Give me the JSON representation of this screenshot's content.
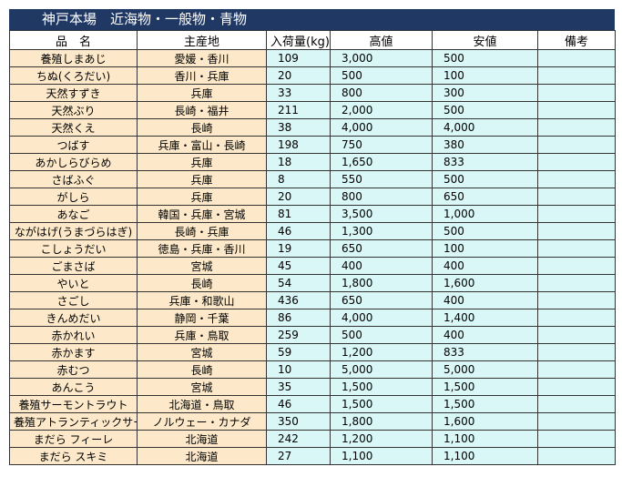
{
  "header": {
    "title": "神戸本場　近海物・一般物・青物"
  },
  "table": {
    "columns": [
      "品　名",
      "主産地",
      "入荷量(kg)",
      "高値",
      "安値",
      "備考"
    ],
    "rows": [
      {
        "name": "養殖しまあじ",
        "origin": "愛媛・香川",
        "qty": "109",
        "high": "3,000",
        "low": "500"
      },
      {
        "name": "ちぬ(くろだい)",
        "origin": "香川・兵庫",
        "qty": "20",
        "high": "500",
        "low": "100"
      },
      {
        "name": "天然すずき",
        "origin": "兵庫",
        "qty": "33",
        "high": "800",
        "low": "300"
      },
      {
        "name": "天然ぶり",
        "origin": "長崎・福井",
        "qty": "211",
        "high": "2,000",
        "low": "500"
      },
      {
        "name": "天然くえ",
        "origin": "長崎",
        "qty": "38",
        "high": "4,000",
        "low": "4,000"
      },
      {
        "name": "つばす",
        "origin": "兵庫・富山・長崎",
        "qty": "198",
        "high": "750",
        "low": "380"
      },
      {
        "name": "あかしらびらめ",
        "origin": "兵庫",
        "qty": "18",
        "high": "1,650",
        "low": "833"
      },
      {
        "name": "さばふぐ",
        "origin": "兵庫",
        "qty": "8",
        "high": "550",
        "low": "500"
      },
      {
        "name": "がしら",
        "origin": "兵庫",
        "qty": "20",
        "high": "800",
        "low": "650"
      },
      {
        "name": "あなご",
        "origin": "韓国・兵庫・宮城",
        "qty": "81",
        "high": "3,500",
        "low": "1,000"
      },
      {
        "name": "ながはげ(うまづらはぎ)",
        "origin": "長崎・兵庫",
        "qty": "46",
        "high": "1,300",
        "low": "500"
      },
      {
        "name": "こしょうだい",
        "origin": "徳島・兵庫・香川",
        "qty": "19",
        "high": "650",
        "low": "100"
      },
      {
        "name": "ごまさば",
        "origin": "宮城",
        "qty": "45",
        "high": "400",
        "low": "400"
      },
      {
        "name": "やいと",
        "origin": "長崎",
        "qty": "54",
        "high": "1,800",
        "low": "1,600"
      },
      {
        "name": "さごし",
        "origin": "兵庫・和歌山",
        "qty": "436",
        "high": "650",
        "low": "400"
      },
      {
        "name": "きんめだい",
        "origin": "静岡・千葉",
        "qty": "86",
        "high": "4,000",
        "low": "1,400"
      },
      {
        "name": "赤かれい",
        "origin": "兵庫・鳥取",
        "qty": "259",
        "high": "500",
        "low": "400"
      },
      {
        "name": "赤かます",
        "origin": "宮城",
        "qty": "59",
        "high": "1,200",
        "low": "833"
      },
      {
        "name": "赤むつ",
        "origin": "長崎",
        "qty": "10",
        "high": "5,000",
        "low": "5,000"
      },
      {
        "name": "あんこう",
        "origin": "宮城",
        "qty": "35",
        "high": "1,500",
        "low": "1,500"
      },
      {
        "name": "養殖サーモントラウト",
        "origin": "北海道・鳥取",
        "qty": "46",
        "high": "1,500",
        "low": "1,500"
      },
      {
        "name": "養殖アトランティックサーモン",
        "origin": "ノルウェー・カナダ",
        "qty": "350",
        "high": "1,800",
        "low": "1,600"
      },
      {
        "name": "まだら フィーレ",
        "origin": "北海道",
        "qty": "242",
        "high": "1,200",
        "low": "1,100"
      },
      {
        "name": "まだら スキミ",
        "origin": "北海道",
        "qty": "27",
        "high": "1,100",
        "low": "1,100"
      }
    ]
  }
}
